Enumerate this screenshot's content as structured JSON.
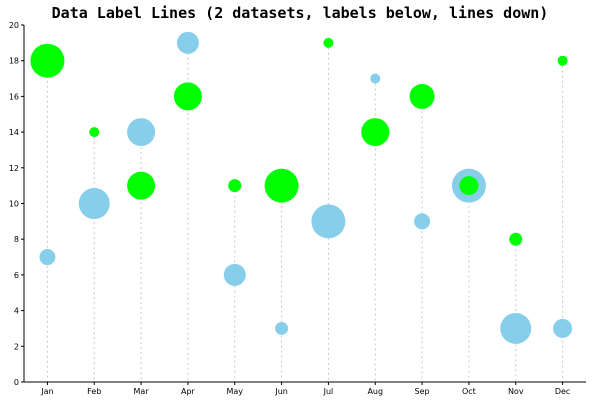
{
  "chart_data": {
    "type": "scatter",
    "title": "Data Label Lines (2 datasets, labels below, lines down)",
    "categories": [
      "Jan",
      "Feb",
      "Mar",
      "Apr",
      "May",
      "Jun",
      "Jul",
      "Aug",
      "Sep",
      "Oct",
      "Nov",
      "Dec"
    ],
    "ylim": [
      0,
      20
    ],
    "y_ticks": [
      0,
      2,
      4,
      6,
      8,
      10,
      12,
      14,
      16,
      18,
      20
    ],
    "grid": false,
    "drop_lines": true,
    "series": [
      {
        "color": "#87ceeb",
        "values": [
          7,
          10,
          14,
          19,
          6,
          3,
          9,
          17,
          9,
          11,
          3,
          3
        ],
        "sizes": [
          3,
          8,
          7,
          5,
          5,
          2,
          9,
          1,
          3,
          9,
          8,
          4
        ]
      },
      {
        "color": "#00ff00",
        "values": [
          18,
          14,
          11,
          16,
          11,
          11,
          19,
          14,
          16,
          11,
          8,
          18
        ],
        "sizes": [
          9,
          1,
          7,
          7,
          2,
          9,
          1,
          7,
          6,
          4,
          2,
          1
        ]
      }
    ],
    "dropline_color": "#c8c8c8",
    "axis_color": "#000000"
  }
}
